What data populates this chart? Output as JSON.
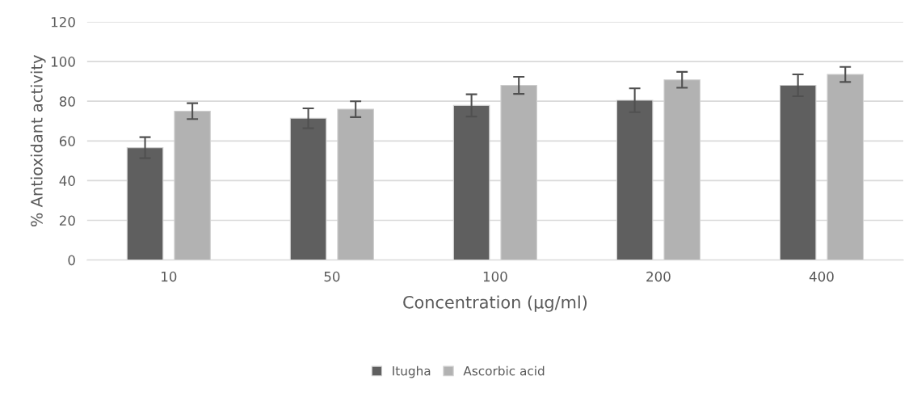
{
  "chart_data": {
    "type": "bar",
    "xlabel": "Concentration (µg/ml)",
    "ylabel": "% Antioxidant activity",
    "categories": [
      "10",
      "50",
      "100",
      "200",
      "400"
    ],
    "series": [
      {
        "name": "Itugha",
        "color": "#5f5f5f",
        "values": [
          56.6,
          71.4,
          77.9,
          80.5,
          88.0
        ],
        "errors": [
          5.3,
          5,
          5.6,
          6,
          5.5
        ]
      },
      {
        "name": "Ascorbic acid",
        "color": "#b2b2b2",
        "values": [
          75.0,
          76.0,
          88.0,
          90.8,
          93.5
        ],
        "errors": [
          4,
          4,
          4.3,
          4,
          3.8
        ]
      }
    ],
    "ylim": [
      0,
      120
    ],
    "yticks": [
      0,
      20,
      40,
      60,
      80,
      100,
      120
    ],
    "grid": "y",
    "legend": "bottom"
  }
}
